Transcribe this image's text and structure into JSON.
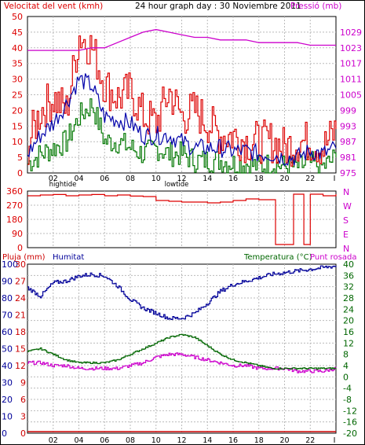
{
  "header": {
    "wind_title": "Velocitat del vent (kmh)",
    "main_title": "24 hour graph day : 30 Noviembre 2011",
    "pressure_title": "Pressió (mb)"
  },
  "labels": {
    "high_tide": "hightide",
    "low_tide": "lowtide",
    "rain": "Pluja (mm)",
    "humidity": "Humitat",
    "temp": "Temperatura (°C)",
    "dew": "Punt rosada"
  },
  "colors": {
    "wind_gust": "#dd0000",
    "wind_avg": "#0000aa",
    "wind_min": "#007700",
    "pressure": "#cc00cc",
    "humidity": "#000099",
    "temperature": "#006600",
    "dew": "#cc00cc",
    "rain": "#cc0000",
    "grid": "#bbbbbb",
    "frame": "#000000"
  },
  "time_ticks": [
    "02",
    "04",
    "06",
    "08",
    "10",
    "12",
    "14",
    "16",
    "18",
    "20",
    "22",
    "I"
  ],
  "chart_data": [
    {
      "type": "line",
      "name": "wind-pressure",
      "x": [
        0,
        1,
        2,
        3,
        4,
        5,
        6,
        7,
        8,
        9,
        10,
        11,
        12,
        13,
        14,
        15,
        16,
        17,
        18,
        19,
        20,
        21,
        22,
        23,
        24
      ],
      "ylim": [
        0,
        50
      ],
      "y2lim": [
        975,
        1035
      ],
      "yticks": [
        "0",
        "5",
        "10",
        "15",
        "20",
        "25",
        "30",
        "35",
        "40",
        "45",
        "50"
      ],
      "y2ticks": [
        "975",
        "981",
        "987",
        "993",
        "999",
        "1005",
        "1011",
        "1017",
        "1023",
        "1029"
      ],
      "series": [
        {
          "name": "gust",
          "values": [
            9,
            20,
            24,
            20,
            44,
            40,
            28,
            24,
            26,
            18,
            16,
            26,
            18,
            20,
            16,
            12,
            12,
            10,
            10,
            10,
            8,
            10,
            10,
            8,
            14
          ]
        },
        {
          "name": "average",
          "values": [
            6,
            12,
            16,
            22,
            30,
            28,
            18,
            17,
            16,
            12,
            12,
            12,
            10,
            8,
            8,
            8,
            7,
            7,
            6,
            6,
            5,
            5,
            7,
            6,
            8
          ]
        },
        {
          "name": "minimum",
          "values": [
            3,
            6,
            8,
            10,
            18,
            22,
            10,
            10,
            8,
            6,
            8,
            6,
            6,
            4,
            4,
            4,
            3,
            3,
            2,
            3,
            2,
            2,
            3,
            2,
            5
          ]
        },
        {
          "name": "pressure",
          "values": [
            1022,
            1022,
            1022,
            1022,
            1022,
            1023,
            1023,
            1025,
            1027,
            1029,
            1030,
            1029,
            1028,
            1027,
            1027,
            1026,
            1026,
            1026,
            1025,
            1025,
            1025,
            1025,
            1024,
            1024,
            1024
          ]
        }
      ]
    },
    {
      "type": "line",
      "name": "wind-direction",
      "ylim": [
        0,
        360
      ],
      "yticks": [
        "0",
        "90",
        "180",
        "270",
        "360"
      ],
      "compass": [
        "N",
        "W",
        "S",
        "E",
        "N"
      ],
      "x": [
        0,
        1,
        2,
        3,
        4,
        5,
        6,
        7,
        8,
        9,
        10,
        11,
        12,
        13,
        14,
        15,
        16,
        17,
        18,
        19,
        19.3,
        20,
        20.5,
        20.7,
        21,
        21.5,
        22,
        22.5,
        23,
        24
      ],
      "values": [
        330,
        335,
        338,
        330,
        335,
        338,
        330,
        335,
        328,
        325,
        300,
        295,
        290,
        290,
        285,
        290,
        300,
        310,
        305,
        305,
        20,
        20,
        20,
        340,
        340,
        20,
        340,
        340,
        330,
        340
      ]
    },
    {
      "type": "line",
      "name": "temp-humidity",
      "x": [
        0,
        1,
        2,
        3,
        4,
        5,
        6,
        7,
        8,
        9,
        10,
        11,
        12,
        13,
        14,
        15,
        16,
        17,
        18,
        19,
        20,
        21,
        22,
        23,
        24
      ],
      "ylim_temp": [
        -20,
        40
      ],
      "yticks_temp": [
        "-20",
        "-16",
        "-12",
        "-8",
        "-4",
        "0",
        "4",
        "8",
        "12",
        "16",
        "20",
        "24",
        "28",
        "32",
        "36",
        "40"
      ],
      "ylim_hum": [
        0,
        100
      ],
      "yticks_hum": [
        "0",
        "10",
        "20",
        "30",
        "40",
        "50",
        "60",
        "70",
        "80",
        "90",
        "100"
      ],
      "ylim_rain": [
        0,
        30
      ],
      "yticks_rain": [
        "0",
        "3",
        "6",
        "9",
        "12",
        "15",
        "18",
        "21",
        "24",
        "27",
        "30"
      ],
      "series": [
        {
          "name": "humidity",
          "values": [
            86,
            81,
            89,
            90,
            93,
            94,
            93,
            87,
            79,
            74,
            71,
            68,
            68,
            71,
            77,
            84,
            88,
            90,
            92,
            94,
            95,
            96,
            97,
            98,
            99
          ]
        },
        {
          "name": "temperature",
          "values": [
            9,
            10,
            8,
            6,
            5,
            5,
            5,
            6,
            8,
            10,
            12,
            14,
            15,
            14,
            11,
            8,
            6,
            5,
            4,
            3,
            3,
            3,
            3,
            3,
            3
          ]
        },
        {
          "name": "dew",
          "values": [
            5,
            5,
            4,
            4,
            3,
            3,
            3,
            3,
            4,
            5,
            7,
            8,
            8,
            7,
            6,
            5,
            4,
            4,
            3,
            3,
            3,
            2,
            2,
            2,
            3
          ]
        },
        {
          "name": "rain",
          "values": [
            0,
            0,
            0,
            0,
            0,
            0,
            0,
            0,
            0,
            0,
            0,
            0,
            0,
            0,
            0,
            0,
            0,
            0,
            0,
            0,
            0,
            0,
            0,
            0,
            0
          ]
        }
      ]
    }
  ]
}
